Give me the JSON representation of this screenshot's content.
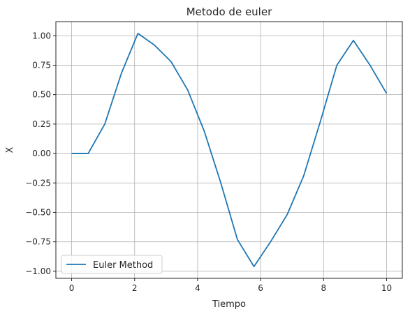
{
  "chart_data": {
    "type": "line",
    "title": "Metodo de euler",
    "xlabel": "Tiempo",
    "ylabel": "X",
    "xlim": [
      -0.5,
      10.5
    ],
    "ylim": [
      -1.06,
      1.12
    ],
    "xticks": [
      0,
      2,
      4,
      6,
      8,
      10
    ],
    "xtick_labels": [
      "0",
      "2",
      "4",
      "6",
      "8",
      "10"
    ],
    "yticks": [
      -1.0,
      -0.75,
      -0.5,
      -0.25,
      0.0,
      0.25,
      0.5,
      0.75,
      1.0
    ],
    "ytick_labels": [
      "−1.00",
      "−0.75",
      "−0.50",
      "−0.25",
      "0.00",
      "0.25",
      "0.50",
      "0.75",
      "1.00"
    ],
    "grid": true,
    "legend_position": "lower-left",
    "series": [
      {
        "name": "Euler Method",
        "color": "#1f77b4",
        "x": [
          0,
          0.526,
          1.053,
          1.579,
          2.105,
          2.632,
          3.158,
          3.684,
          4.211,
          4.737,
          5.263,
          5.789,
          6.316,
          6.842,
          7.368,
          7.895,
          8.421,
          8.947,
          9.474,
          10.0
        ],
        "y": [
          0.0,
          0.0,
          0.25,
          0.68,
          1.02,
          0.92,
          0.78,
          0.54,
          0.19,
          -0.25,
          -0.73,
          -0.96,
          -0.75,
          -0.52,
          -0.19,
          0.27,
          0.75,
          0.96,
          0.75,
          0.51
        ]
      }
    ]
  }
}
